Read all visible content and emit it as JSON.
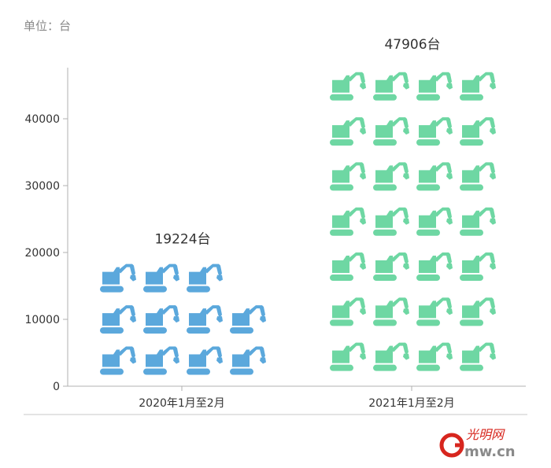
{
  "unit_label": "单位：台",
  "colors": {
    "series_2020": "#5ba8dc",
    "series_2021": "#6ed7a3",
    "axis": "#b0b0b0",
    "baseline_rule": "#c8c8c8",
    "logo_red": "#d7261e",
    "logo_gray": "#8a8a8a"
  },
  "icons": {
    "mark": "excavator-icon"
  },
  "logo": {
    "text": "光明网",
    "domain": "mw.cn",
    "letter": "G"
  },
  "chart_data": {
    "type": "bar",
    "style": "pictorial",
    "categories": [
      "2020年1月至2月",
      "2021年1月至2月"
    ],
    "values": [
      19224,
      47906
    ],
    "value_labels": [
      "19224台",
      "47906台"
    ],
    "ylim": [
      0,
      50000
    ],
    "yticks": [
      "0",
      "10000",
      "20000",
      "30000",
      "40000"
    ],
    "ytick_values": [
      0,
      10000,
      20000,
      30000,
      40000
    ],
    "grid": false,
    "legend": "none"
  }
}
